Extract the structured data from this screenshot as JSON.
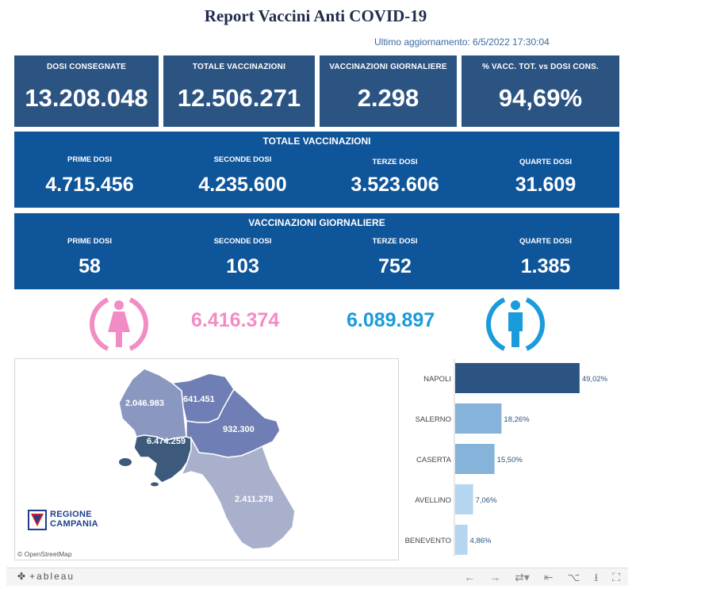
{
  "header": {
    "title": "Report Vaccini Anti COVID-19",
    "updated": "Ultimo aggiornamento: 6/5/2022 17:30:04"
  },
  "kpis": [
    {
      "label": "DOSI  CONSEGNATE",
      "value": "13.208.048"
    },
    {
      "label": "TOTALE VACCINAZIONI",
      "value": "12.506.271"
    },
    {
      "label": "VACCINAZIONI GIORNALIERE",
      "value": "2.298"
    },
    {
      "label": "% VACC. TOT. vs DOSI CONS.",
      "value": "94,69%"
    }
  ],
  "totale": {
    "title": "TOTALE VACCINAZIONI",
    "items": [
      {
        "label": "PRIME DOSI",
        "value": "4.715.456"
      },
      {
        "label": "SECONDE DOSI",
        "value": "4.235.600"
      },
      {
        "label": "TERZE DOSI",
        "value": "3.523.606"
      },
      {
        "label": "QUARTE DOSI",
        "value": "31.609"
      }
    ]
  },
  "giornaliere": {
    "title": "VACCINAZIONI GIORNALIERE",
    "items": [
      {
        "label": "PRIME DOSI",
        "value": "58"
      },
      {
        "label": "SECONDE DOSI",
        "value": "103"
      },
      {
        "label": "TERZE DOSI",
        "value": "752"
      },
      {
        "label": "QUARTE DOSI",
        "value": "1.385"
      }
    ]
  },
  "gender": {
    "female_value": "6.416.374",
    "male_value": "6.089.897",
    "female_color": "#f28cc4",
    "male_color": "#1a9bdb",
    "female_icon": "woman-icon",
    "male_icon": "man-icon"
  },
  "map": {
    "attribution": "© OpenStreetMap",
    "logo_line1": "REGIONE",
    "logo_line2": "CAMPANIA",
    "provinces": [
      {
        "name": "Caserta",
        "value": "2.046.983",
        "color": "#8a97c1"
      },
      {
        "name": "Benevento",
        "value": "641.451",
        "color": "#6f7fb5"
      },
      {
        "name": "Avellino",
        "value": "932.300",
        "color": "#6f7fb5"
      },
      {
        "name": "Napoli",
        "value": "6.474.259",
        "color": "#3d5a7d"
      },
      {
        "name": "Salerno",
        "value": "2.411.278",
        "color": "#a8b0cc"
      }
    ]
  },
  "chart_data": {
    "type": "bar",
    "orientation": "horizontal",
    "categories": [
      "NAPOLI",
      "SALERNO",
      "CASERTA",
      "AVELLINO",
      "BENEVENTO"
    ],
    "values": [
      49.02,
      18.26,
      15.5,
      7.06,
      4.86
    ],
    "value_labels": [
      "49,02%",
      "18,26%",
      "15,50%",
      "7,06%",
      "4,86%"
    ],
    "xlim": [
      0,
      50
    ],
    "colors": [
      "#2c5483",
      "#86b3d9",
      "#86b3d9",
      "#b5d6ee",
      "#b5d6ee"
    ]
  },
  "toolbar": {
    "logo": "+ableau"
  }
}
